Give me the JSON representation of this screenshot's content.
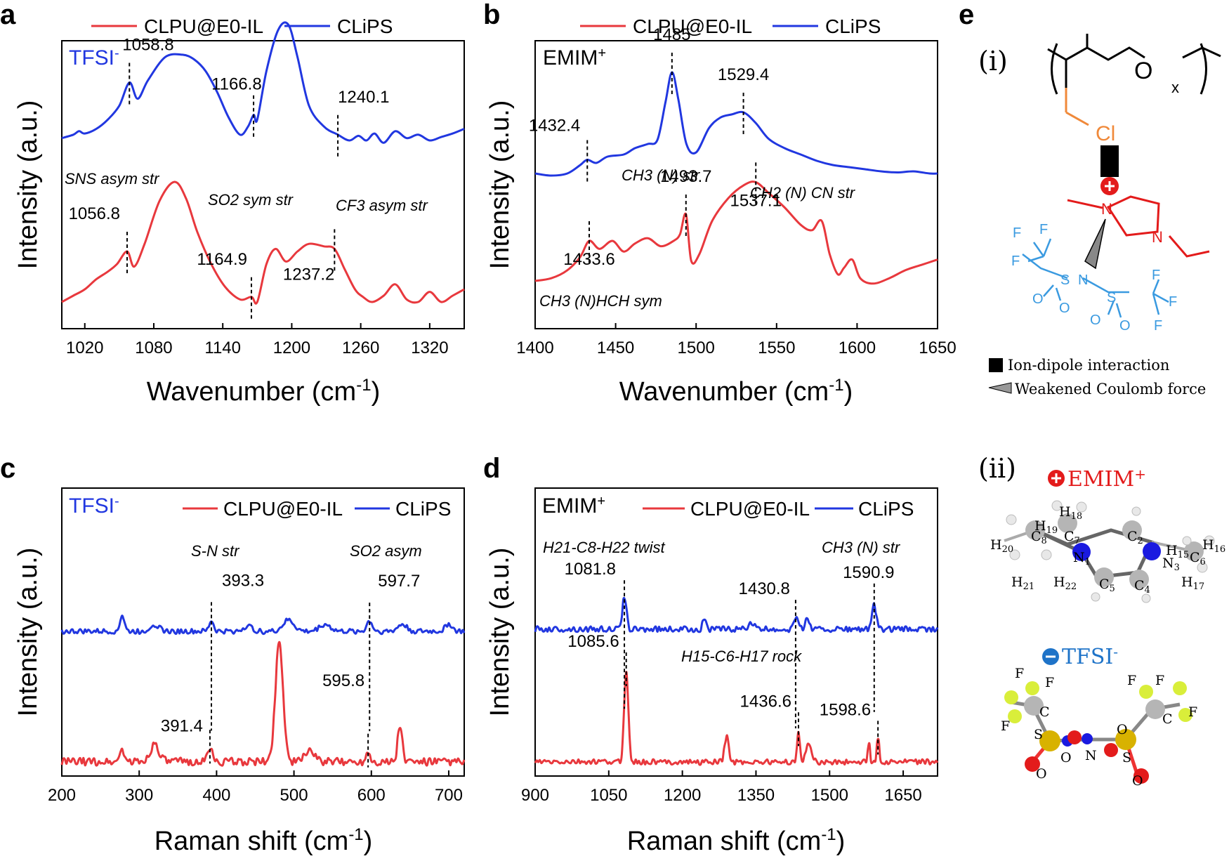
{
  "colors": {
    "il": "#e8383d",
    "clips": "#2137e0",
    "tfsi_chem": "#3a9ae0",
    "emim_red": "#e31b1b",
    "cl_orange": "#f0893a"
  },
  "legend": {
    "a": "CLPU@E0-IL",
    "b": "CLiPS"
  },
  "panels": {
    "a": {
      "label": "a",
      "species": "TFSI",
      "charge": "-",
      "xlabel": "Wavenumber (cm",
      "xunit": "-1",
      "xclose": ")",
      "ylabel": "Intensity (a.u.)"
    },
    "b": {
      "label": "b",
      "species": "EMIM",
      "charge": "+",
      "xlabel": "Wavenumber (cm",
      "xunit": "-1",
      "xclose": ")",
      "ylabel": "Intensity (a.u.)"
    },
    "c": {
      "label": "c",
      "species": "TFSI",
      "charge": "-",
      "xlabel": "Raman shift (cm",
      "xunit": "-1",
      "xclose": ")",
      "ylabel": "Intensity (a.u.)"
    },
    "d": {
      "label": "d",
      "species": "EMIM",
      "charge": "+",
      "xlabel": "Raman shift (cm",
      "xunit": "-1",
      "xclose": ")",
      "ylabel": "Intensity (a.u.)"
    }
  },
  "band_labels": {
    "a1": "SNS asym str",
    "a2": "SO2 sym str",
    "a3": "CF3 asym str",
    "b1": "CH3 (N) str",
    "b2": "CH2 (N) CN str",
    "b3": "CH3 (N)HCH sym",
    "c1": "S-N str",
    "c2": "SO2 asym",
    "d1": "H21-C8-H22 twist",
    "d2": "CH3 (N) str",
    "d3": "H15-C6-H17 rock"
  },
  "chart_data": [
    {
      "panel": "a",
      "type": "line",
      "title": "TFSI-",
      "xlabel": "Wavenumber (cm-1)",
      "ylabel": "Intensity (a.u.)",
      "xlim": [
        1000,
        1350
      ],
      "xticks": [
        1020,
        1080,
        1140,
        1200,
        1260,
        1320
      ],
      "yticks": [],
      "series": [
        {
          "name": "CLiPS",
          "color": "#2137e0",
          "offset": 0.62,
          "x": [
            1000,
            1010,
            1015,
            1020,
            1030,
            1040,
            1050,
            1058.8,
            1066,
            1075,
            1090,
            1105,
            1115,
            1125,
            1135,
            1145,
            1155,
            1162,
            1166.8,
            1170,
            1178,
            1188,
            1197,
            1205,
            1215,
            1228,
            1240.1,
            1250,
            1258,
            1265,
            1272,
            1280,
            1290,
            1300,
            1310,
            1320,
            1330,
            1340,
            1350
          ],
          "y": [
            0.02,
            0.05,
            0.08,
            0.06,
            0.1,
            0.18,
            0.3,
            0.5,
            0.36,
            0.52,
            0.72,
            0.74,
            0.7,
            0.6,
            0.42,
            0.2,
            0.05,
            0.12,
            0.22,
            0.18,
            0.6,
            0.95,
            1.0,
            0.72,
            0.3,
            0.12,
            0.05,
            0.0,
            0.04,
            0.0,
            0.06,
            -0.02,
            0.08,
            0.02,
            0.05,
            0.0,
            0.03,
            0.06,
            0.1
          ]
        },
        {
          "name": "CLPU@E0-IL",
          "color": "#e8383d",
          "offset": 0.0,
          "x": [
            1000,
            1010,
            1020,
            1030,
            1040,
            1048,
            1056.8,
            1063,
            1072,
            1085,
            1098,
            1108,
            1118,
            1130,
            1142,
            1155,
            1164.9,
            1170,
            1178,
            1186,
            1195,
            1205,
            1215,
            1228,
            1237.2,
            1246,
            1255,
            1262,
            1270,
            1280,
            1290,
            1300,
            1310,
            1320,
            1330,
            1340,
            1350
          ],
          "y": [
            0.0,
            0.05,
            0.1,
            0.18,
            0.24,
            0.3,
            0.4,
            0.28,
            0.46,
            0.8,
            0.95,
            0.82,
            0.55,
            0.3,
            0.12,
            0.02,
            0.04,
            0.0,
            0.3,
            0.42,
            0.32,
            0.4,
            0.46,
            0.44,
            0.42,
            0.26,
            0.1,
            0.04,
            0.0,
            0.05,
            0.14,
            0.02,
            0.0,
            0.08,
            0.0,
            0.05,
            0.1
          ]
        }
      ],
      "annotations": [
        {
          "x": 1058.8,
          "label": "1058.8",
          "curve": "CLiPS"
        },
        {
          "x": 1166.8,
          "label": "1166.8",
          "curve": "CLiPS"
        },
        {
          "x": 1240.1,
          "label": "1240.1",
          "curve": "CLiPS"
        },
        {
          "x": 1056.8,
          "label": "1056.8",
          "curve": "CLPU@E0-IL"
        },
        {
          "x": 1164.9,
          "label": "1164.9",
          "curve": "CLPU@E0-IL"
        },
        {
          "x": 1237.2,
          "label": "1237.2",
          "curve": "CLPU@E0-IL"
        }
      ]
    },
    {
      "panel": "b",
      "type": "line",
      "title": "EMIM+",
      "xlabel": "Wavenumber (cm-1)",
      "ylabel": "Intensity (a.u.)",
      "xlim": [
        1400,
        1650
      ],
      "xticks": [
        1400,
        1450,
        1500,
        1550,
        1600,
        1650
      ],
      "yticks": [],
      "series": [
        {
          "name": "CLiPS",
          "color": "#2137e0",
          "offset": 0.6,
          "x": [
            1400,
            1410,
            1420,
            1428,
            1432.4,
            1438,
            1445,
            1455,
            1462,
            1470,
            1476,
            1481,
            1485,
            1489,
            1494,
            1500,
            1508,
            1515,
            1522,
            1529.4,
            1537,
            1545,
            1555,
            1565,
            1575,
            1585,
            1595,
            1605,
            1615,
            1625,
            1635,
            1645,
            1650
          ],
          "y": [
            0.02,
            0.0,
            0.02,
            0.1,
            0.15,
            0.12,
            0.18,
            0.2,
            0.26,
            0.3,
            0.34,
            0.7,
            0.98,
            0.72,
            0.3,
            0.22,
            0.45,
            0.55,
            0.58,
            0.6,
            0.5,
            0.35,
            0.26,
            0.2,
            0.14,
            0.1,
            0.08,
            0.06,
            0.04,
            0.03,
            0.04,
            0.02,
            0.02
          ]
        },
        {
          "name": "CLPU@E0-IL",
          "color": "#e8383d",
          "offset": 0.0,
          "x": [
            1400,
            1410,
            1420,
            1428,
            1433.6,
            1440,
            1448,
            1455,
            1462,
            1470,
            1478,
            1486,
            1490,
            1493.7,
            1497,
            1502,
            1510,
            1520,
            1530,
            1537.1,
            1545,
            1555,
            1565,
            1572,
            1578,
            1583,
            1588,
            1592,
            1597,
            1602,
            1610,
            1620,
            1630,
            1640,
            1650
          ],
          "y": [
            0.0,
            0.02,
            0.08,
            0.18,
            0.3,
            0.24,
            0.3,
            0.22,
            0.28,
            0.32,
            0.26,
            0.3,
            0.35,
            0.5,
            0.15,
            0.2,
            0.45,
            0.62,
            0.72,
            0.74,
            0.66,
            0.55,
            0.42,
            0.38,
            0.45,
            0.2,
            0.05,
            0.1,
            0.16,
            0.02,
            -0.02,
            0.02,
            0.08,
            0.12,
            0.16
          ]
        }
      ],
      "annotations": [
        {
          "x": 1485,
          "label": "1485",
          "curve": "CLiPS"
        },
        {
          "x": 1529.4,
          "label": "1529.4",
          "curve": "CLiPS"
        },
        {
          "x": 1432.4,
          "label": "1432.4",
          "curve": "CLiPS"
        },
        {
          "x": 1493.7,
          "label": "1493.7",
          "curve": "CLPU@E0-IL"
        },
        {
          "x": 1537.1,
          "label": "1537.1",
          "curve": "CLPU@E0-IL"
        },
        {
          "x": 1433.6,
          "label": "1433.6",
          "curve": "CLPU@E0-IL"
        }
      ]
    },
    {
      "panel": "c",
      "type": "line",
      "title": "TFSI-",
      "xlabel": "Raman shift (cm-1)",
      "ylabel": "Intensity (a.u.)",
      "xlim": [
        200,
        720
      ],
      "xticks": [
        200,
        300,
        400,
        500,
        600,
        700
      ],
      "yticks": [],
      "series": [
        {
          "name": "CLiPS",
          "color": "#2137e0",
          "offset": 0.55,
          "peaks": [
            [
              278,
              0.45,
              4
            ],
            [
              320,
              0.2,
              8
            ],
            [
              393.3,
              0.3,
              4
            ],
            [
              440,
              0.15,
              8
            ],
            [
              493,
              0.32,
              10
            ],
            [
              540,
              0.2,
              10
            ],
            [
              597.7,
              0.3,
              5
            ],
            [
              640,
              0.2,
              8
            ],
            [
              700,
              0.22,
              6
            ]
          ],
          "noise": 0.07,
          "base": 0.12
        },
        {
          "name": "CLPU@E0-IL",
          "color": "#e8383d",
          "offset": 0.0,
          "peaks": [
            [
              278,
              0.1,
              4
            ],
            [
              320,
              0.14,
              8
            ],
            [
              391.4,
              0.12,
              4
            ],
            [
              481,
              0.95,
              7
            ],
            [
              520,
              0.1,
              8
            ],
            [
              595.8,
              0.08,
              4
            ],
            [
              637,
              0.3,
              4
            ]
          ],
          "noise": 0.03,
          "base": 0.03
        }
      ],
      "annotations": [
        {
          "x": 393.3,
          "label": "393.3",
          "curve": "CLiPS"
        },
        {
          "x": 597.7,
          "label": "597.7",
          "curve": "CLiPS"
        },
        {
          "x": 391.4,
          "label": "391.4",
          "curve": "CLPU@E0-IL"
        },
        {
          "x": 595.8,
          "label": "595.8",
          "curve": "CLPU@E0-IL"
        }
      ]
    },
    {
      "panel": "d",
      "type": "line",
      "title": "EMIM+",
      "xlabel": "Raman shift (cm-1)",
      "ylabel": "Intensity (a.u.)",
      "xlim": [
        900,
        1720
      ],
      "xticks": [
        900,
        1050,
        1200,
        1350,
        1500,
        1650
      ],
      "yticks": [],
      "series": [
        {
          "name": "CLiPS",
          "color": "#2137e0",
          "offset": 0.55,
          "peaks": [
            [
              1081.8,
              0.55,
              6
            ],
            [
              1245,
              0.2,
              5
            ],
            [
              1340,
              0.12,
              8
            ],
            [
              1430.8,
              0.22,
              6
            ],
            [
              1455,
              0.2,
              6
            ],
            [
              1590.9,
              0.42,
              6
            ]
          ],
          "noise": 0.05,
          "base": 0.05
        },
        {
          "name": "CLPU@E0-IL",
          "color": "#e8383d",
          "offset": 0.0,
          "peaks": [
            [
              1085.6,
              0.72,
              6
            ],
            [
              1290,
              0.2,
              6
            ],
            [
              1436.6,
              0.22,
              4
            ],
            [
              1458,
              0.15,
              8
            ],
            [
              1580,
              0.18,
              3
            ],
            [
              1598.6,
              0.22,
              3
            ]
          ],
          "noise": 0.02,
          "base": 0.0
        }
      ],
      "annotations": [
        {
          "x": 1081.8,
          "label": "1081.8",
          "curve": "CLiPS"
        },
        {
          "x": 1430.8,
          "label": "1430.8",
          "curve": "CLiPS"
        },
        {
          "x": 1590.9,
          "label": "1590.9",
          "curve": "CLiPS"
        },
        {
          "x": 1085.6,
          "label": "1085.6",
          "curve": "CLPU@E0-IL"
        },
        {
          "x": 1436.6,
          "label": "1436.6",
          "curve": "CLPU@E0-IL"
        },
        {
          "x": 1598.6,
          "label": "1598.6",
          "curve": "CLPU@E0-IL"
        }
      ]
    }
  ],
  "panel_e": {
    "label": "e",
    "sub_i": "(i)",
    "sub_ii": "(ii)",
    "legend_ion": "Ion-dipole interaction",
    "legend_coul": "Weakened Coulomb force",
    "emim_title": "EMIM",
    "emim_charge": "+",
    "tfsi_title": "TFSI",
    "tfsi_charge": "-",
    "atoms": {
      "o": "O",
      "x": "x",
      "cl": "Cl",
      "n": "N",
      "n1": "N",
      "f": "F",
      "s": "S",
      "c": "C"
    },
    "hlabels": [
      "H18",
      "H19",
      "H20",
      "H21",
      "H22",
      "H15",
      "H16",
      "H17",
      "C7",
      "C8",
      "C2",
      "C6",
      "C5",
      "C4",
      "N1",
      "N3"
    ]
  }
}
